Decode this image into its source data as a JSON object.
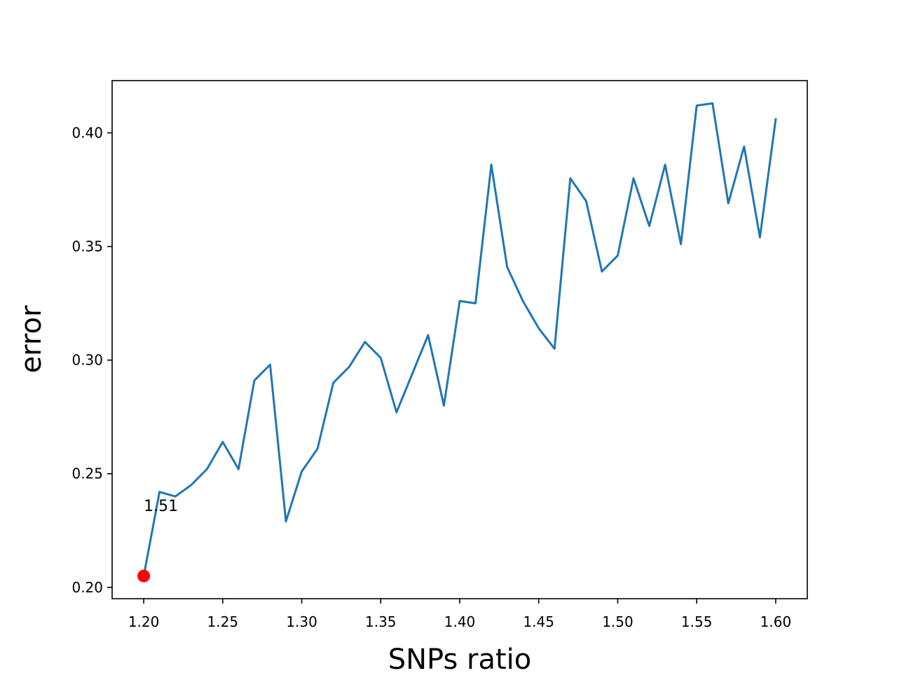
{
  "chart_data": {
    "type": "line",
    "title": "",
    "xlabel": "SNPs ratio",
    "ylabel": "error",
    "xlim": [
      1.18,
      1.62
    ],
    "ylim": [
      0.195,
      0.423
    ],
    "xticks": [
      1.2,
      1.25,
      1.3,
      1.35,
      1.4,
      1.45,
      1.5,
      1.55,
      1.6
    ],
    "xtick_labels": [
      "1.20",
      "1.25",
      "1.30",
      "1.35",
      "1.40",
      "1.45",
      "1.50",
      "1.55",
      "1.60"
    ],
    "yticks": [
      0.2,
      0.25,
      0.3,
      0.35,
      0.4
    ],
    "ytick_labels": [
      "0.20",
      "0.25",
      "0.30",
      "0.35",
      "0.40"
    ],
    "grid": false,
    "series": [
      {
        "color": "#1f77b4",
        "x": [
          1.2,
          1.21,
          1.22,
          1.23,
          1.24,
          1.25,
          1.26,
          1.27,
          1.28,
          1.29,
          1.3,
          1.31,
          1.32,
          1.33,
          1.34,
          1.35,
          1.36,
          1.37,
          1.38,
          1.39,
          1.4,
          1.41,
          1.42,
          1.43,
          1.44,
          1.45,
          1.46,
          1.47,
          1.48,
          1.49,
          1.5,
          1.51,
          1.52,
          1.53,
          1.54,
          1.55,
          1.56,
          1.57,
          1.58,
          1.59,
          1.6
        ],
        "y": [
          0.205,
          0.242,
          0.24,
          0.245,
          0.252,
          0.264,
          0.252,
          0.291,
          0.298,
          0.229,
          0.251,
          0.261,
          0.29,
          0.297,
          0.308,
          0.301,
          0.277,
          0.294,
          0.311,
          0.28,
          0.326,
          0.325,
          0.386,
          0.341,
          0.326,
          0.314,
          0.305,
          0.38,
          0.37,
          0.339,
          0.346,
          0.38,
          0.359,
          0.386,
          0.351,
          0.412,
          0.413,
          0.369,
          0.394,
          0.354,
          0.406
        ]
      }
    ],
    "highlight_point": {
      "x": 1.2,
      "y": 0.205,
      "color": "#ff0000"
    },
    "annotation": {
      "text": "1.51",
      "x": 1.2,
      "y": 0.236
    }
  }
}
